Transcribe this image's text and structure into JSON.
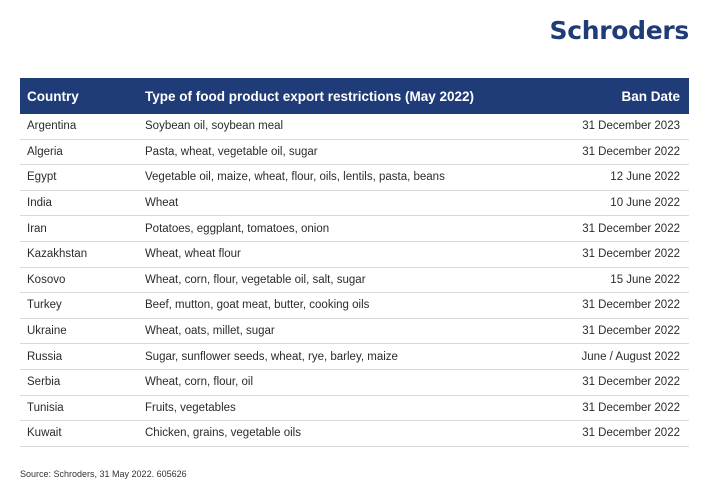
{
  "logo": "Schroders",
  "table": {
    "headers": {
      "country": "Country",
      "type": "Type of food product export restrictions (May 2022)",
      "date": "Ban Date"
    },
    "rows": [
      {
        "country": "Argentina",
        "type": "Soybean oil, soybean meal",
        "date": "31 December 2023"
      },
      {
        "country": "Algeria",
        "type": "Pasta, wheat, vegetable oil, sugar",
        "date": "31 December 2022"
      },
      {
        "country": "Egypt",
        "type": "Vegetable oil, maize, wheat, flour, oils, lentils, pasta, beans",
        "date": "12 June 2022"
      },
      {
        "country": "India",
        "type": "Wheat",
        "date": "10 June 2022"
      },
      {
        "country": "Iran",
        "type": "Potatoes, eggplant, tomatoes, onion",
        "date": "31 December 2022"
      },
      {
        "country": "Kazakhstan",
        "type": "Wheat, wheat flour",
        "date": "31 December 2022"
      },
      {
        "country": "Kosovo",
        "type": "Wheat, corn, flour, vegetable oil, salt, sugar",
        "date": "15 June 2022"
      },
      {
        "country": "Turkey",
        "type": "Beef, mutton, goat meat, butter, cooking oils",
        "date": "31 December 2022"
      },
      {
        "country": "Ukraine",
        "type": "Wheat, oats, millet, sugar",
        "date": "31 December 2022"
      },
      {
        "country": "Russia",
        "type": "Sugar, sunflower seeds, wheat, rye, barley, maize",
        "date": "June / August 2022"
      },
      {
        "country": "Serbia",
        "type": "Wheat, corn, flour, oil",
        "date": "31 December 2022"
      },
      {
        "country": "Tunisia",
        "type": "Fruits, vegetables",
        "date": "31 December 2022"
      },
      {
        "country": "Kuwait",
        "type": "Chicken, grains, vegetable oils",
        "date": "31 December 2022"
      }
    ]
  },
  "source": "Source: Schroders, 31 May 2022. 605626",
  "colors": {
    "brand": "#1f3b78"
  }
}
